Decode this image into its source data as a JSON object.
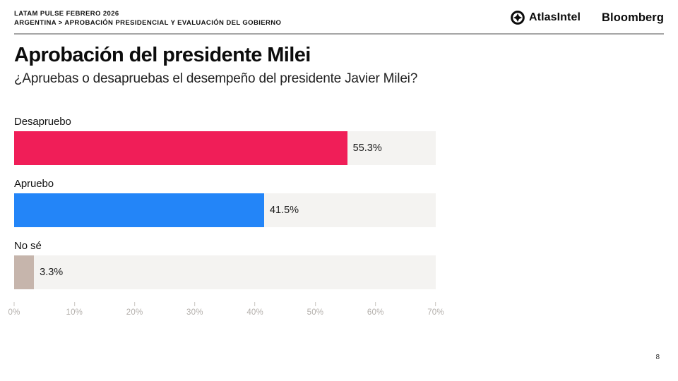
{
  "header": {
    "kicker_line1": "LATAM PULSE FEBRERO 2026",
    "kicker_line2": "ARGENTINA > APROBACIÓN PRESIDENCIAL Y EVALUACIÓN DEL GOBIERNO",
    "brand_atlasintel": "AtlasIntel",
    "brand_bloomberg": "Bloomberg"
  },
  "title": "Aprobación del presidente Milei",
  "subtitle": "¿Apruebas o desapruebas el desempeño del presidente Javier Milei?",
  "page_number": "8",
  "colors": {
    "desapruebo": "#F01E58",
    "apruebo": "#2385F8",
    "no_se": "#C6B5AC",
    "track": "#F4F3F1",
    "axis_text": "#B3AFAB",
    "divider": "#A6A6A6"
  },
  "chart_data": {
    "type": "bar",
    "orientation": "horizontal",
    "title": "Aprobación del presidente Milei",
    "categories": [
      "Desapruebo",
      "Apruebo",
      "No sé"
    ],
    "values": [
      55.3,
      41.5,
      3.3
    ],
    "value_labels": [
      "55.3%",
      "41.5%",
      "3.3%"
    ],
    "bar_colors": [
      "#F01E58",
      "#2385F8",
      "#C6B5AC"
    ],
    "track_color": "#F4F3F1",
    "xlim": [
      0,
      70
    ],
    "x_ticks": [
      "0%",
      "10%",
      "20%",
      "30%",
      "40%",
      "50%",
      "60%",
      "70%"
    ],
    "grid": false,
    "legend": "none"
  }
}
